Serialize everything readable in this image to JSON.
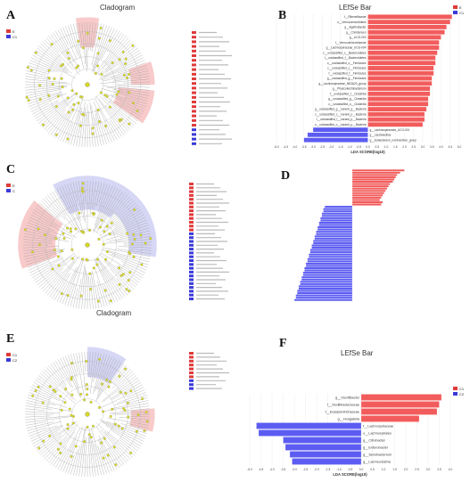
{
  "panels": {
    "A": {
      "label": "A",
      "title": "Cladogram",
      "legend": [
        {
          "name": "E",
          "color": "#e03a3a"
        },
        {
          "name": "C1",
          "color": "#3a3ad8"
        }
      ]
    },
    "B": {
      "label": "B",
      "title": "LEfSe Bar",
      "legend": [
        {
          "name": "E",
          "color": "#e03a3a"
        },
        {
          "name": "C1",
          "color": "#3a3ad8"
        }
      ]
    },
    "C": {
      "label": "C",
      "title": "Cladogram",
      "legend": [
        {
          "name": "E",
          "color": "#e03a3a"
        },
        {
          "name": "C",
          "color": "#3a3ad8"
        }
      ]
    },
    "D": {
      "label": "D"
    },
    "E": {
      "label": "E",
      "legend": [
        {
          "name": "C1",
          "color": "#e03a3a"
        },
        {
          "name": "C2",
          "color": "#3a3ad8"
        }
      ]
    },
    "F": {
      "label": "F",
      "title": "LEfSe Bar",
      "legend": [
        {
          "name": "C1",
          "color": "#e03a3a"
        },
        {
          "name": "C2",
          "color": "#3a3ad8"
        }
      ]
    }
  },
  "colors": {
    "red": "#f25c5c",
    "blue": "#5c5cf2",
    "red_dark": "#e03a3a",
    "blue_dark": "#3a3ad8",
    "node": "#d8d820"
  },
  "chart_data": [
    {
      "id": "B",
      "type": "bar",
      "orientation": "horizontal",
      "xlabel": "LDA SCORE(log10)",
      "xlim": [
        -5,
        5
      ],
      "ticks": [
        "-5.0",
        "-4.5",
        "-4.0",
        "-3.5",
        "-3.0",
        "-2.5",
        "-2.0",
        "-1.5",
        "-1.0",
        "-0.5",
        "0.0",
        "0.5",
        "1.0",
        "1.5",
        "2.0",
        "2.5",
        "3.0",
        "3.5",
        "4.0",
        "4.5",
        "5.0"
      ],
      "categories": [
        "f__Rikenellaceae",
        "o__Verrucomicrobiales",
        "g__Agathobacter",
        "g__Christensen",
        "g__UCG-002",
        "f__Verrucomicrobiaceae",
        "g__Lachnospiraceae_UCG-004",
        "c__unclassified_c__Bacteroidetes",
        "f__unclassified_f__Bacteroidetes",
        "o__unclassified_o__Firmicutes",
        "c__unclassified_c__Firmicutes",
        "f__unclassified_f__Firmicutes",
        "g__unclassified_g__Firmicutes",
        "g__Lachnospiraceae_NK3A20_group",
        "g__Phascolarctobacterium",
        "f__unclassified_f__Clostridia",
        "g__unclassified_g__Clostridia",
        "o__unclassified_o__Clostridia",
        "g__unclassified_g__norank_g__Bacteria",
        "c__unclassified_c__norank_p__Bacteria",
        "f__unclassified_f__norank_p__Bacteria",
        "o__unclassified_o__norank_p__Bacteria",
        "g__Lachnospiraceae_UCG-001",
        "g__Lactobacillus",
        "g__Eubacterium_ruminantium_group"
      ],
      "values": [
        4.6,
        4.5,
        4.3,
        4.2,
        4.0,
        3.9,
        3.9,
        3.8,
        3.7,
        3.7,
        3.6,
        3.6,
        3.5,
        3.5,
        3.4,
        3.4,
        3.3,
        3.3,
        3.2,
        3.1,
        3.1,
        3.0,
        -3.0,
        -3.3,
        -3.5
      ]
    },
    {
      "id": "D",
      "type": "bar",
      "orientation": "horizontal",
      "xlim": [
        -4,
        4
      ],
      "values": [
        3.6,
        3.3,
        3.1,
        3.0,
        2.9,
        2.8,
        2.6,
        2.5,
        2.4,
        2.3,
        2.2,
        2.1,
        2.0,
        1.9,
        2.1,
        2.0,
        -1.9,
        -2.0,
        -2.0,
        -2.1,
        -2.1,
        -2.2,
        -2.2,
        -2.3,
        -2.3,
        -2.4,
        -2.4,
        -2.5,
        -2.5,
        -2.6,
        -2.6,
        -2.7,
        -2.7,
        -2.8,
        -2.8,
        -2.9,
        -2.9,
        -3.0,
        -3.0,
        -3.1,
        -3.1,
        -3.2,
        -3.2,
        -3.3,
        -3.3,
        -3.4,
        -3.4,
        -3.5,
        -3.5,
        -3.6,
        -3.6,
        -3.7,
        -3.7,
        -3.8,
        -3.8,
        -3.9,
        -3.9,
        -4.0
      ]
    },
    {
      "id": "F",
      "type": "bar",
      "orientation": "horizontal",
      "xlabel": "LDA SCORE(log10)",
      "xlim": [
        -5,
        4
      ],
      "ticks": [
        "-5.0",
        "-4.5",
        "-4.0",
        "-3.5",
        "-3.0",
        "-2.5",
        "-2.0",
        "-1.5",
        "-1.0",
        "-0.5",
        "0.0",
        "0.5",
        "1.0",
        "1.5",
        "2.0",
        "2.5",
        "3.0",
        "3.5",
        "4.0"
      ],
      "categories": [
        "g__Oscillibacter",
        "f__Oscillibacteraceae",
        "f__Erysipelotrichaceae",
        "g__Hungatella",
        "f__Lachnospiraceae",
        "o__Lachnospirales",
        "g__Citrobacter",
        "g__Enterobacter",
        "g__Senobacterium",
        "g__Lachnoclostria"
      ],
      "values": [
        3.6,
        3.5,
        3.4,
        2.6,
        -4.7,
        -4.6,
        -3.5,
        -3.4,
        -3.2,
        -3.1
      ]
    }
  ]
}
